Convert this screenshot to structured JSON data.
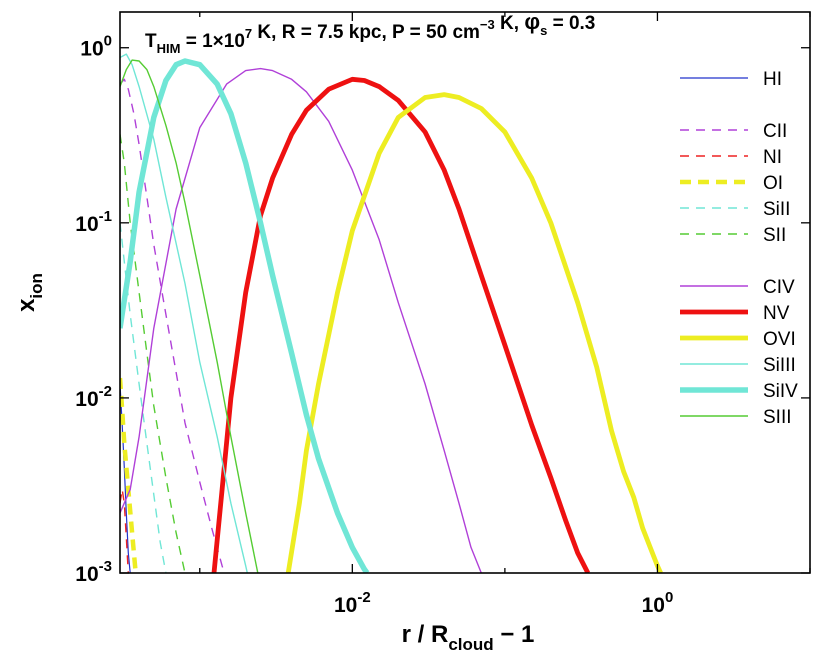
{
  "chart_data": {
    "type": "line",
    "title": {
      "parts": [
        {
          "t": "T",
          "sub": "HIM",
          "rest": " = 1×10"
        },
        {
          "sup": "7"
        },
        {
          "t": " K,  R = 7.5 kpc,  P = 50 cm"
        },
        {
          "sup": "−3"
        },
        {
          "t": " K,  "
        },
        {
          "phi": "φ",
          "sub": "s",
          "rest": " = 0.3"
        }
      ]
    },
    "xlabel": {
      "main": "r / R",
      "sub": "cloud",
      "rest": " − 1"
    },
    "ylabel": {
      "main": "x",
      "sub": "ion"
    },
    "xscale": "log",
    "yscale": "log",
    "xlim": [
      0.0003,
      10
    ],
    "ylim": [
      0.001,
      1.6
    ],
    "xticks": [
      {
        "value": 0.01,
        "base": "10",
        "exp": "-2"
      },
      {
        "value": 1,
        "base": "10",
        "exp": "0"
      }
    ],
    "yticks": [
      {
        "value": 1,
        "base": "10",
        "exp": "0"
      },
      {
        "value": 0.1,
        "base": "10",
        "exp": "-1"
      },
      {
        "value": 0.01,
        "base": "10",
        "exp": "-2"
      },
      {
        "value": 0.001,
        "base": "10",
        "exp": "-3"
      }
    ],
    "legend": {
      "location": "right-inside"
    },
    "series": [
      {
        "name": "HI",
        "color": "#2233cc",
        "width": 1.2,
        "dash": "solid",
        "points": [
          [
            0.0003,
            0.012
          ],
          [
            0.00031,
            0.007
          ],
          [
            0.00032,
            0.004
          ],
          [
            0.00033,
            0.0022
          ],
          [
            0.00034,
            0.0013
          ],
          [
            0.00035,
            0.001
          ]
        ]
      },
      {
        "name": "CII",
        "color": "#b040d8",
        "width": 1.4,
        "dash": "dashed",
        "points": [
          [
            0.0003,
            0.62
          ],
          [
            0.00032,
            0.66
          ],
          [
            0.00034,
            0.58
          ],
          [
            0.00037,
            0.42
          ],
          [
            0.0004,
            0.28
          ],
          [
            0.00045,
            0.14
          ],
          [
            0.0005,
            0.075
          ],
          [
            0.0006,
            0.03
          ],
          [
            0.0007,
            0.014
          ],
          [
            0.0008,
            0.0072
          ],
          [
            0.001,
            0.0033
          ],
          [
            0.0012,
            0.0018
          ],
          [
            0.0014,
            0.0011
          ],
          [
            0.00145,
            0.001
          ]
        ]
      },
      {
        "name": "NI",
        "color": "#ee2222",
        "width": 1.4,
        "dash": "dashed",
        "points": [
          [
            0.0003,
            0.0025
          ],
          [
            0.00031,
            0.003
          ],
          [
            0.00032,
            0.0025
          ],
          [
            0.00033,
            0.0016
          ],
          [
            0.00034,
            0.001
          ]
        ]
      },
      {
        "name": "OI",
        "color": "#eded22",
        "width": 4.5,
        "dash": "thickdash",
        "points": [
          [
            0.0003,
            0.013
          ],
          [
            0.00031,
            0.0085
          ],
          [
            0.00032,
            0.0055
          ],
          [
            0.00034,
            0.003
          ],
          [
            0.00036,
            0.0017
          ],
          [
            0.00038,
            0.001
          ]
        ]
      },
      {
        "name": "SiII",
        "color": "#70e6d6",
        "width": 1.4,
        "dash": "dashed",
        "points": [
          [
            0.0003,
            0.1
          ],
          [
            0.00032,
            0.06
          ],
          [
            0.00035,
            0.03
          ],
          [
            0.0004,
            0.012
          ],
          [
            0.00045,
            0.0055
          ],
          [
            0.0005,
            0.0028
          ],
          [
            0.00055,
            0.0015
          ],
          [
            0.0006,
            0.001
          ]
        ]
      },
      {
        "name": "SII",
        "color": "#55cc33",
        "width": 1.4,
        "dash": "dashed",
        "points": [
          [
            0.0003,
            0.32
          ],
          [
            0.00032,
            0.22
          ],
          [
            0.00035,
            0.1
          ],
          [
            0.0004,
            0.04
          ],
          [
            0.00045,
            0.018
          ],
          [
            0.0005,
            0.009
          ],
          [
            0.0006,
            0.0035
          ],
          [
            0.0007,
            0.0017
          ],
          [
            0.0008,
            0.001
          ]
        ]
      },
      {
        "name": "CIV",
        "color": "#b040d8",
        "width": 1.4,
        "dash": "solid",
        "points": [
          [
            0.0003,
            0.0022
          ],
          [
            0.00035,
            0.003
          ],
          [
            0.0004,
            0.006
          ],
          [
            0.0005,
            0.025
          ],
          [
            0.0007,
            0.12
          ],
          [
            0.001,
            0.35
          ],
          [
            0.0015,
            0.62
          ],
          [
            0.002,
            0.74
          ],
          [
            0.0025,
            0.76
          ],
          [
            0.003,
            0.74
          ],
          [
            0.004,
            0.66
          ],
          [
            0.005,
            0.56
          ],
          [
            0.007,
            0.38
          ],
          [
            0.01,
            0.2
          ],
          [
            0.015,
            0.08
          ],
          [
            0.02,
            0.035
          ],
          [
            0.03,
            0.012
          ],
          [
            0.04,
            0.005
          ],
          [
            0.05,
            0.0025
          ],
          [
            0.06,
            0.0014
          ],
          [
            0.07,
            0.001
          ]
        ]
      },
      {
        "name": "NV",
        "color": "#ee1111",
        "width": 4.8,
        "dash": "solid",
        "points": [
          [
            0.00124,
            0.001
          ],
          [
            0.0014,
            0.003
          ],
          [
            0.0016,
            0.01
          ],
          [
            0.002,
            0.04
          ],
          [
            0.0025,
            0.11
          ],
          [
            0.003,
            0.18
          ],
          [
            0.004,
            0.32
          ],
          [
            0.005,
            0.44
          ],
          [
            0.007,
            0.58
          ],
          [
            0.01,
            0.66
          ],
          [
            0.012,
            0.65
          ],
          [
            0.015,
            0.6
          ],
          [
            0.02,
            0.5
          ],
          [
            0.03,
            0.33
          ],
          [
            0.04,
            0.2
          ],
          [
            0.05,
            0.12
          ],
          [
            0.07,
            0.05
          ],
          [
            0.1,
            0.02
          ],
          [
            0.15,
            0.007
          ],
          [
            0.2,
            0.0035
          ],
          [
            0.25,
            0.002
          ],
          [
            0.3,
            0.0013
          ],
          [
            0.35,
            0.001
          ]
        ]
      },
      {
        "name": "OVI",
        "color": "#eded22",
        "width": 4.8,
        "dash": "solid",
        "points": [
          [
            0.0038,
            0.001
          ],
          [
            0.0045,
            0.0025
          ],
          [
            0.005,
            0.005
          ],
          [
            0.006,
            0.012
          ],
          [
            0.008,
            0.04
          ],
          [
            0.01,
            0.09
          ],
          [
            0.015,
            0.25
          ],
          [
            0.02,
            0.4
          ],
          [
            0.03,
            0.52
          ],
          [
            0.04,
            0.54
          ],
          [
            0.05,
            0.52
          ],
          [
            0.07,
            0.45
          ],
          [
            0.1,
            0.33
          ],
          [
            0.15,
            0.18
          ],
          [
            0.2,
            0.1
          ],
          [
            0.3,
            0.035
          ],
          [
            0.4,
            0.015
          ],
          [
            0.5,
            0.0065
          ],
          [
            0.6,
            0.0038
          ],
          [
            0.7,
            0.0027
          ],
          [
            0.8,
            0.0018
          ],
          [
            1.0,
            0.0011
          ],
          [
            1.05,
            0.001
          ]
        ]
      },
      {
        "name": "SiIII",
        "color": "#70e6d6",
        "width": 1.4,
        "dash": "solid",
        "points": [
          [
            0.0003,
            0.88
          ],
          [
            0.00033,
            0.92
          ],
          [
            0.00036,
            0.8
          ],
          [
            0.0004,
            0.6
          ],
          [
            0.0005,
            0.3
          ],
          [
            0.0006,
            0.14
          ],
          [
            0.0008,
            0.045
          ],
          [
            0.001,
            0.016
          ],
          [
            0.0013,
            0.006
          ],
          [
            0.0016,
            0.0025
          ],
          [
            0.002,
            0.0011
          ],
          [
            0.00205,
            0.001
          ]
        ]
      },
      {
        "name": "SiIV",
        "color": "#70e6d6",
        "width": 5.5,
        "dash": "solid",
        "points": [
          [
            0.0003,
            0.025
          ],
          [
            0.00035,
            0.06
          ],
          [
            0.0004,
            0.15
          ],
          [
            0.0005,
            0.4
          ],
          [
            0.0006,
            0.65
          ],
          [
            0.0007,
            0.8
          ],
          [
            0.0008,
            0.84
          ],
          [
            0.001,
            0.8
          ],
          [
            0.0013,
            0.62
          ],
          [
            0.0016,
            0.42
          ],
          [
            0.002,
            0.22
          ],
          [
            0.0025,
            0.1
          ],
          [
            0.003,
            0.05
          ],
          [
            0.004,
            0.018
          ],
          [
            0.005,
            0.008
          ],
          [
            0.006,
            0.0045
          ],
          [
            0.008,
            0.0022
          ],
          [
            0.01,
            0.0014
          ],
          [
            0.012,
            0.00105
          ],
          [
            0.0125,
            0.001
          ]
        ]
      },
      {
        "name": "SIII",
        "color": "#55cc33",
        "width": 1.4,
        "dash": "solid",
        "points": [
          [
            0.0003,
            0.6
          ],
          [
            0.00033,
            0.75
          ],
          [
            0.00036,
            0.85
          ],
          [
            0.0004,
            0.84
          ],
          [
            0.00045,
            0.75
          ],
          [
            0.0005,
            0.6
          ],
          [
            0.0006,
            0.36
          ],
          [
            0.0007,
            0.22
          ],
          [
            0.0008,
            0.13
          ],
          [
            0.001,
            0.05
          ],
          [
            0.0013,
            0.016
          ],
          [
            0.0016,
            0.006
          ],
          [
            0.002,
            0.0022
          ],
          [
            0.0023,
            0.0012
          ],
          [
            0.0024,
            0.001
          ]
        ]
      }
    ],
    "legend_groups": [
      [
        "HI"
      ],
      [
        "CII",
        "NI",
        "OI",
        "SiII",
        "SII"
      ],
      [
        "CIV",
        "NV",
        "OVI",
        "SiIII",
        "SiIV",
        "SIII"
      ]
    ]
  }
}
